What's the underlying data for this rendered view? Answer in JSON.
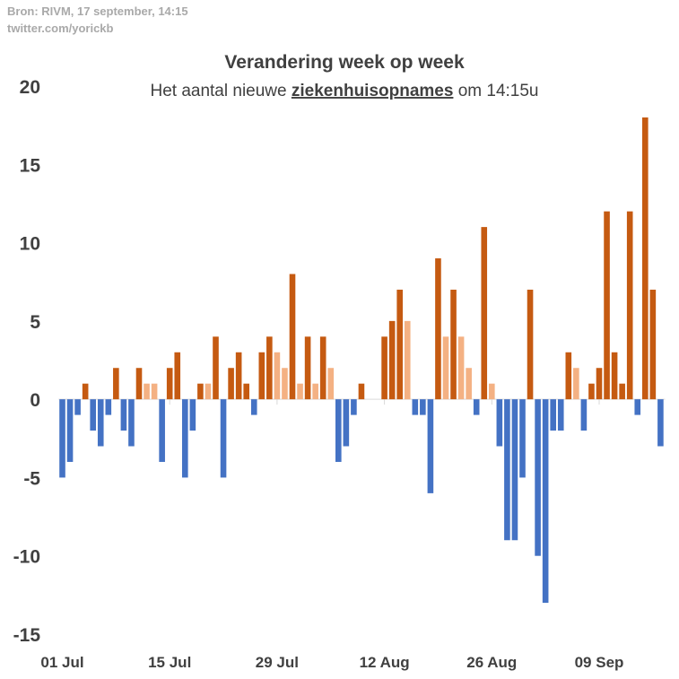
{
  "source_line_1": "Bron: RIVM, 17 september, 14:15",
  "source_line_2": "twitter.com/yorickb",
  "colors": {
    "positive": "#c55a11",
    "positive_light": "#f4b183",
    "negative": "#4472c4",
    "axis": "#d9d9d9",
    "text": "#404040",
    "source_text": "#a9a9a9"
  },
  "chart_data": {
    "type": "bar",
    "title": "Verandering week op week",
    "subtitle_prefix": "Het aantal nieuwe ",
    "subtitle_emphasis": "ziekenhuisopnames",
    "subtitle_suffix": " om 14:15u",
    "ylim": [
      -15,
      20
    ],
    "yticks": [
      20,
      15,
      10,
      5,
      0,
      -5,
      -10,
      -15
    ],
    "grid": false,
    "x_start": "01 Jul",
    "x_tick_labels": [
      "01 Jul",
      "15 Jul",
      "29 Jul",
      "12 Aug",
      "26 Aug",
      "09 Sep"
    ],
    "values": [
      -5,
      -4,
      -1,
      1,
      -2,
      -3,
      -1,
      2,
      -2,
      -3,
      2,
      1,
      1,
      -4,
      2,
      3,
      -5,
      -2,
      1,
      1,
      4,
      -5,
      2,
      3,
      1,
      -1,
      3,
      4,
      3,
      2,
      8,
      1,
      4,
      1,
      4,
      2,
      -4,
      -3,
      -1,
      1,
      0,
      0,
      4,
      5,
      7,
      5,
      -1,
      -1,
      -6,
      9,
      4,
      7,
      4,
      2,
      -1,
      11,
      1,
      -3,
      -9,
      -9,
      -5,
      7,
      -10,
      -13,
      -2,
      -2,
      3,
      2,
      -2,
      1,
      2,
      12,
      3,
      1,
      12,
      -1,
      18,
      7,
      -3
    ],
    "light_bar_indices": [
      11,
      12,
      19,
      28,
      29,
      31,
      33,
      35,
      45,
      50,
      52,
      53,
      56,
      67
    ]
  }
}
